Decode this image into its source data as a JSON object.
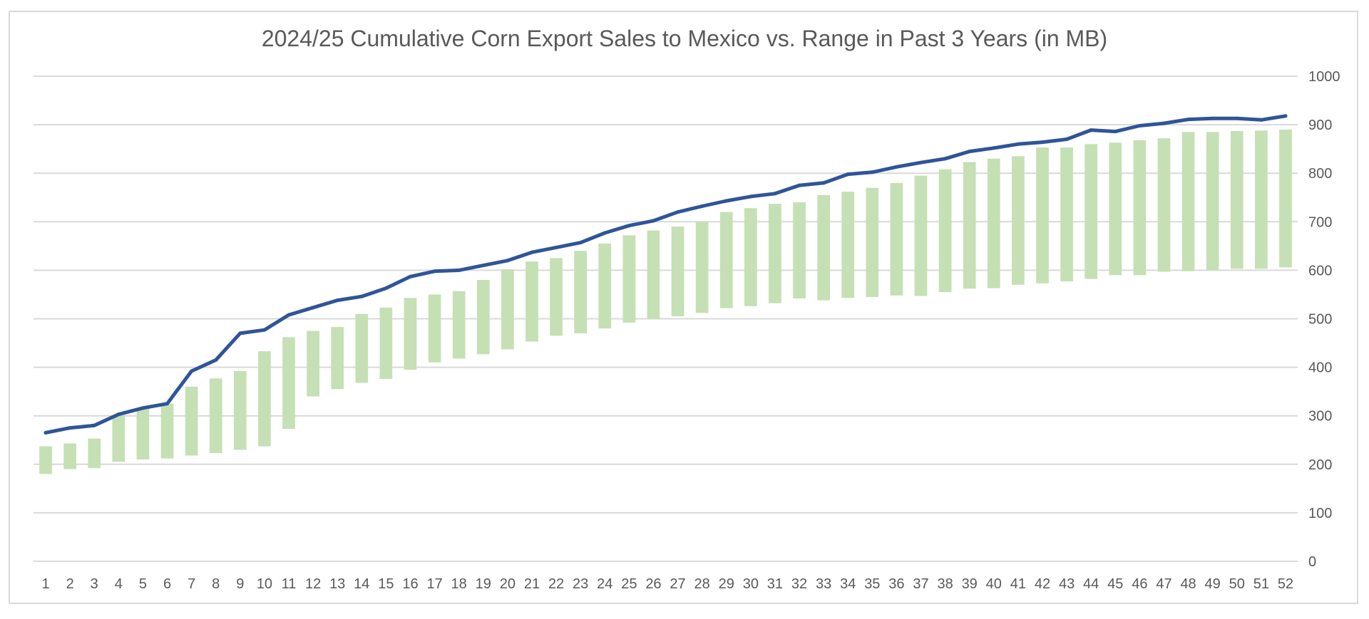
{
  "chart_data": {
    "type": "bar",
    "title": "2024/25 Cumulative Corn Export Sales to Mexico vs. Range in Past 3 Years (in MB)",
    "xlabel": "",
    "ylabel": "",
    "categories": [
      "1",
      "2",
      "3",
      "4",
      "5",
      "6",
      "7",
      "8",
      "9",
      "10",
      "11",
      "12",
      "13",
      "14",
      "15",
      "16",
      "17",
      "18",
      "19",
      "20",
      "21",
      "22",
      "23",
      "24",
      "25",
      "26",
      "27",
      "28",
      "29",
      "30",
      "31",
      "32",
      "33",
      "34",
      "35",
      "36",
      "37",
      "38",
      "39",
      "40",
      "41",
      "42",
      "43",
      "44",
      "45",
      "46",
      "47",
      "48",
      "49",
      "50",
      "51",
      "52"
    ],
    "ylim": [
      0,
      1000
    ],
    "y_ticks": [
      "0",
      "100",
      "200",
      "300",
      "400",
      "500",
      "600",
      "700",
      "800",
      "900",
      "1000"
    ],
    "y_axis_side": "right",
    "grid": true,
    "legend": "none",
    "range_bars": {
      "low": [
        180,
        190,
        192,
        205,
        210,
        212,
        218,
        223,
        230,
        237,
        273,
        340,
        355,
        368,
        376,
        395,
        410,
        418,
        427,
        437,
        453,
        465,
        470,
        480,
        492,
        500,
        505,
        512,
        522,
        526,
        532,
        542,
        538,
        543,
        545,
        548,
        547,
        555,
        562,
        563,
        570,
        573,
        577,
        582,
        590,
        590,
        597,
        598,
        600,
        603,
        603,
        606
      ],
      "high": [
        237,
        243,
        253,
        300,
        315,
        325,
        360,
        377,
        392,
        433,
        462,
        475,
        483,
        510,
        523,
        543,
        550,
        557,
        580,
        602,
        618,
        625,
        640,
        655,
        672,
        682,
        690,
        700,
        720,
        728,
        737,
        740,
        755,
        762,
        770,
        780,
        795,
        808,
        823,
        830,
        835,
        853,
        853,
        860,
        863,
        868,
        872,
        885,
        885,
        887,
        888,
        890
      ],
      "color": "#c5e0b4"
    },
    "series": [
      {
        "type": "line",
        "color": "#2f5597",
        "values": [
          265,
          275,
          280,
          303,
          316,
          325,
          392,
          415,
          470,
          477,
          508,
          523,
          538,
          546,
          563,
          587,
          598,
          600,
          610,
          620,
          637,
          647,
          657,
          677,
          692,
          702,
          720,
          732,
          743,
          752,
          758,
          775,
          780,
          798,
          802,
          813,
          822,
          830,
          845,
          852,
          860,
          864,
          870,
          889,
          886,
          898,
          903,
          911,
          913,
          913,
          910,
          918
        ]
      }
    ]
  }
}
